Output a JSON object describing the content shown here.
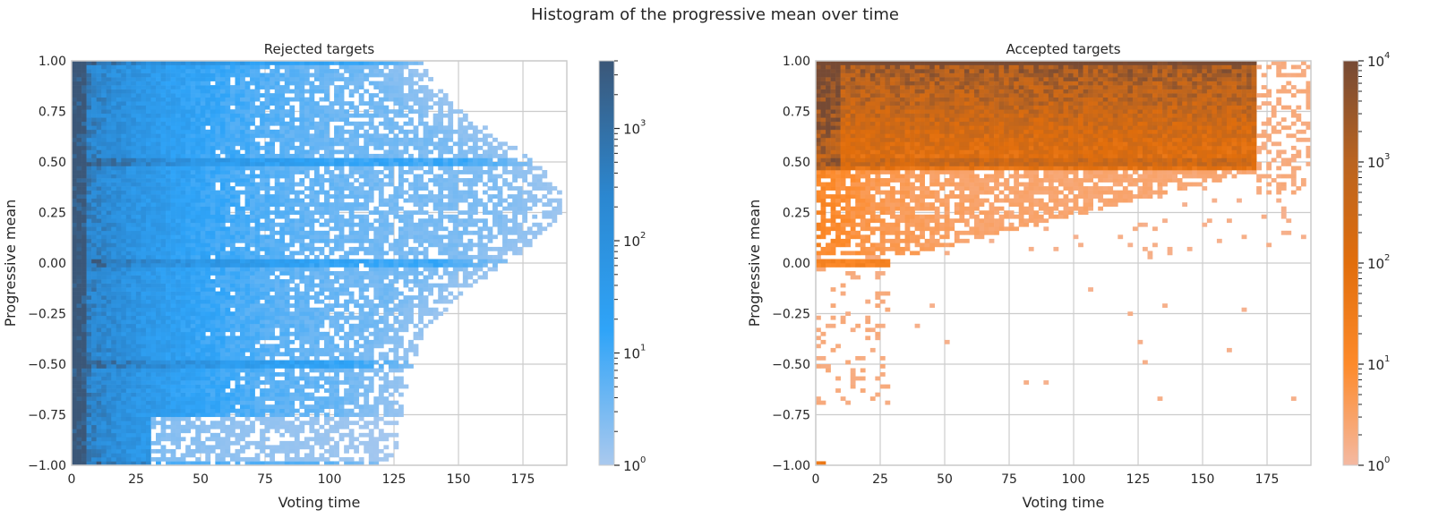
{
  "suptitle": "Histogram of the progressive mean over time",
  "chart_data": [
    {
      "type": "heatmap",
      "title": "Rejected targets",
      "xlabel": "Voting time",
      "ylabel": "Progressive mean",
      "xlim": [
        0,
        192
      ],
      "ylim": [
        -1,
        1
      ],
      "xticks": [
        0,
        25,
        50,
        75,
        100,
        125,
        150,
        175
      ],
      "yticks": [
        -1.0,
        -0.75,
        -0.5,
        -0.25,
        0.0,
        0.25,
        0.5,
        0.75,
        1.0
      ],
      "ytick_labels": [
        "−1.00",
        "−0.75",
        "−0.50",
        "−0.25",
        "0.00",
        "0.25",
        "0.50",
        "0.75",
        "1.00"
      ],
      "grid": true,
      "colorbar": {
        "scale": "log",
        "range": [
          1,
          4000
        ],
        "ticks": [
          1,
          10,
          100,
          1000
        ],
        "tick_labels": [
          "10",
          "10",
          "10",
          "10"
        ],
        "tick_exponents": [
          "0",
          "1",
          "2",
          "3"
        ],
        "colors": [
          "#aac9ee",
          "#2fa4f8",
          "#2b87d0",
          "#3b5778"
        ]
      },
      "distribution": {
        "x_max_by_y": "symmetric funnel: data reaches t≈190 near mean 0.1–0.5, t≈130 at mean 1.0 and −0.5",
        "dense_region": "t < 25 across all means",
        "highlighted_rows": [
          -1.0,
          -0.5,
          0.0,
          0.5,
          1.0
        ]
      }
    },
    {
      "type": "heatmap",
      "title": "Accepted targets",
      "xlabel": "Voting time",
      "ylabel": "Progressive mean",
      "xlim": [
        0,
        192
      ],
      "ylim": [
        -1,
        1
      ],
      "xticks": [
        0,
        25,
        50,
        75,
        100,
        125,
        150,
        175
      ],
      "yticks": [
        -1.0,
        -0.75,
        -0.5,
        -0.25,
        0.0,
        0.25,
        0.5,
        0.75,
        1.0
      ],
      "ytick_labels": [
        "−1.00",
        "−0.75",
        "−0.50",
        "−0.25",
        "0.00",
        "0.25",
        "0.50",
        "0.75",
        "1.00"
      ],
      "grid": true,
      "colorbar": {
        "scale": "log",
        "range": [
          1,
          10000
        ],
        "ticks": [
          1,
          10,
          100,
          1000,
          10000
        ],
        "tick_labels": [
          "10",
          "10",
          "10",
          "10",
          "10"
        ],
        "tick_exponents": [
          "0",
          "1",
          "2",
          "3",
          "4"
        ],
        "colors": [
          "#f4b9a2",
          "#fd8a2a",
          "#e16e0c",
          "#ba6420",
          "#764a34"
        ]
      },
      "distribution": {
        "dense_region": "mean 0.45–1.0 for t < 170",
        "sparse_region": "scattered counts down to mean −0.7 for t < 30",
        "highlighted_rows": [
          -1.0,
          0.0,
          0.5,
          1.0
        ]
      }
    }
  ]
}
